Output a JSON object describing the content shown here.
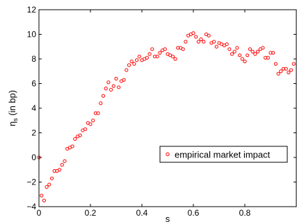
{
  "chart_data": {
    "type": "scatter",
    "xlabel": "s",
    "ylabel_main": "η",
    "ylabel_sub": "s",
    "ylabel_rest": " (in bp)",
    "xlim": [
      0,
      1
    ],
    "ylim": [
      -4,
      12
    ],
    "grid": false,
    "legend_position": "lower-right",
    "marker_color": "#ff0000",
    "x_ticks": [
      {
        "value": 0,
        "label": "0"
      },
      {
        "value": 0.2,
        "label": "0.2"
      },
      {
        "value": 0.4,
        "label": "0.4"
      },
      {
        "value": 0.6,
        "label": "0.6"
      },
      {
        "value": 0.8,
        "label": "0.8"
      }
    ],
    "y_ticks": [
      {
        "value": -4,
        "label": "−4"
      },
      {
        "value": -2,
        "label": "−2"
      },
      {
        "value": 0,
        "label": "0"
      },
      {
        "value": 2,
        "label": "2"
      },
      {
        "value": 4,
        "label": "4"
      },
      {
        "value": 6,
        "label": "6"
      },
      {
        "value": 8,
        "label": "8"
      },
      {
        "value": 10,
        "label": "10"
      },
      {
        "value": 12,
        "label": "12"
      }
    ],
    "series": [
      {
        "name": "empirical market impact",
        "points": [
          [
            0.0,
            0.0
          ],
          [
            0.01,
            -3.1
          ],
          [
            0.02,
            -3.5
          ],
          [
            0.03,
            -2.4
          ],
          [
            0.04,
            -2.2
          ],
          [
            0.05,
            -1.7
          ],
          [
            0.06,
            -1.1
          ],
          [
            0.07,
            -1.1
          ],
          [
            0.08,
            -1.0
          ],
          [
            0.09,
            -0.6
          ],
          [
            0.1,
            -0.3
          ],
          [
            0.11,
            0.7
          ],
          [
            0.12,
            0.8
          ],
          [
            0.13,
            0.9
          ],
          [
            0.14,
            1.5
          ],
          [
            0.15,
            1.7
          ],
          [
            0.16,
            1.8
          ],
          [
            0.17,
            2.2
          ],
          [
            0.18,
            2.3
          ],
          [
            0.19,
            2.8
          ],
          [
            0.2,
            2.7
          ],
          [
            0.21,
            3.0
          ],
          [
            0.22,
            3.6
          ],
          [
            0.23,
            3.6
          ],
          [
            0.24,
            4.4
          ],
          [
            0.25,
            5.0
          ],
          [
            0.26,
            5.6
          ],
          [
            0.27,
            6.1
          ],
          [
            0.28,
            5.5
          ],
          [
            0.29,
            5.8
          ],
          [
            0.3,
            6.4
          ],
          [
            0.31,
            5.7
          ],
          [
            0.32,
            6.2
          ],
          [
            0.33,
            6.3
          ],
          [
            0.34,
            7.1
          ],
          [
            0.35,
            7.5
          ],
          [
            0.36,
            7.8
          ],
          [
            0.37,
            7.6
          ],
          [
            0.38,
            7.9
          ],
          [
            0.39,
            8.2
          ],
          [
            0.4,
            7.9
          ],
          [
            0.41,
            8.0
          ],
          [
            0.42,
            8.1
          ],
          [
            0.43,
            8.4
          ],
          [
            0.44,
            8.8
          ],
          [
            0.45,
            8.2
          ],
          [
            0.46,
            8.2
          ],
          [
            0.47,
            8.5
          ],
          [
            0.48,
            8.7
          ],
          [
            0.49,
            8.8
          ],
          [
            0.5,
            8.4
          ],
          [
            0.51,
            8.3
          ],
          [
            0.52,
            8.2
          ],
          [
            0.53,
            8.0
          ],
          [
            0.54,
            8.9
          ],
          [
            0.55,
            8.9
          ],
          [
            0.56,
            8.8
          ],
          [
            0.57,
            9.4
          ],
          [
            0.58,
            9.9
          ],
          [
            0.59,
            10.0
          ],
          [
            0.6,
            10.1
          ],
          [
            0.61,
            9.8
          ],
          [
            0.62,
            9.4
          ],
          [
            0.63,
            9.6
          ],
          [
            0.64,
            9.4
          ],
          [
            0.65,
            10.0
          ],
          [
            0.66,
            9.9
          ],
          [
            0.67,
            9.3
          ],
          [
            0.68,
            9.4
          ],
          [
            0.69,
            9.0
          ],
          [
            0.7,
            9.3
          ],
          [
            0.71,
            9.2
          ],
          [
            0.72,
            9.1
          ],
          [
            0.73,
            9.2
          ],
          [
            0.74,
            8.8
          ],
          [
            0.75,
            8.4
          ],
          [
            0.76,
            8.6
          ],
          [
            0.77,
            8.9
          ],
          [
            0.78,
            8.3
          ],
          [
            0.79,
            8.0
          ],
          [
            0.8,
            7.8
          ],
          [
            0.81,
            8.3
          ],
          [
            0.82,
            8.8
          ],
          [
            0.83,
            8.6
          ],
          [
            0.84,
            8.4
          ],
          [
            0.85,
            8.6
          ],
          [
            0.86,
            8.8
          ],
          [
            0.87,
            8.9
          ],
          [
            0.88,
            8.1
          ],
          [
            0.89,
            8.1
          ],
          [
            0.9,
            8.5
          ],
          [
            0.91,
            8.5
          ],
          [
            0.92,
            7.6
          ],
          [
            0.93,
            6.8
          ],
          [
            0.94,
            7.0
          ],
          [
            0.95,
            7.2
          ],
          [
            0.96,
            7.2
          ],
          [
            0.97,
            6.9
          ],
          [
            0.98,
            7.1
          ],
          [
            0.99,
            7.6
          ]
        ]
      }
    ]
  }
}
